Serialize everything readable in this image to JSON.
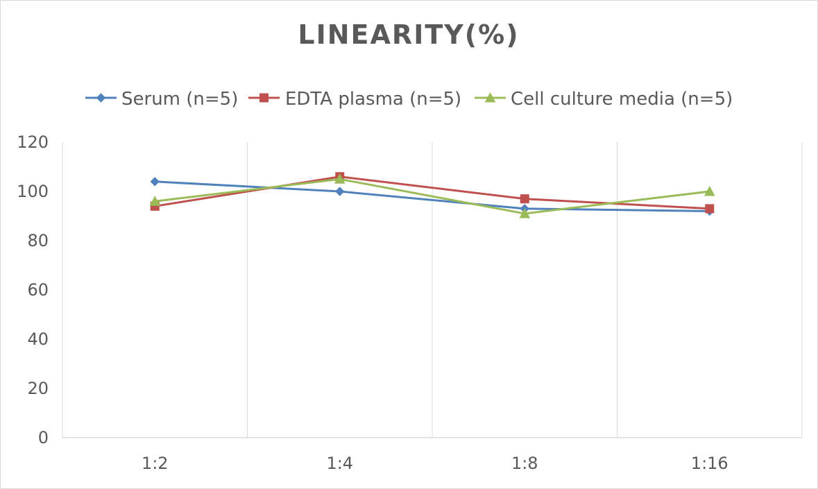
{
  "chart_data": {
    "type": "line",
    "title": "LINEARITY(%)",
    "categories": [
      "1:2",
      "1:4",
      "1:8",
      "1:16"
    ],
    "ylim": [
      0,
      120
    ],
    "yticks": [
      0,
      20,
      40,
      60,
      80,
      100,
      120
    ],
    "grid": "vertical",
    "legend_position": "top",
    "series": [
      {
        "name": "Serum (n=5)",
        "values": [
          104,
          100,
          93,
          92
        ],
        "color": "#4F81BD",
        "marker": "diamond"
      },
      {
        "name": "EDTA plasma (n=5)",
        "values": [
          94,
          106,
          97,
          93
        ],
        "color": "#C0504D",
        "marker": "square"
      },
      {
        "name": "Cell culture media (n=5)",
        "values": [
          96,
          105,
          91,
          100
        ],
        "color": "#9BBB59",
        "marker": "triangle"
      }
    ]
  }
}
